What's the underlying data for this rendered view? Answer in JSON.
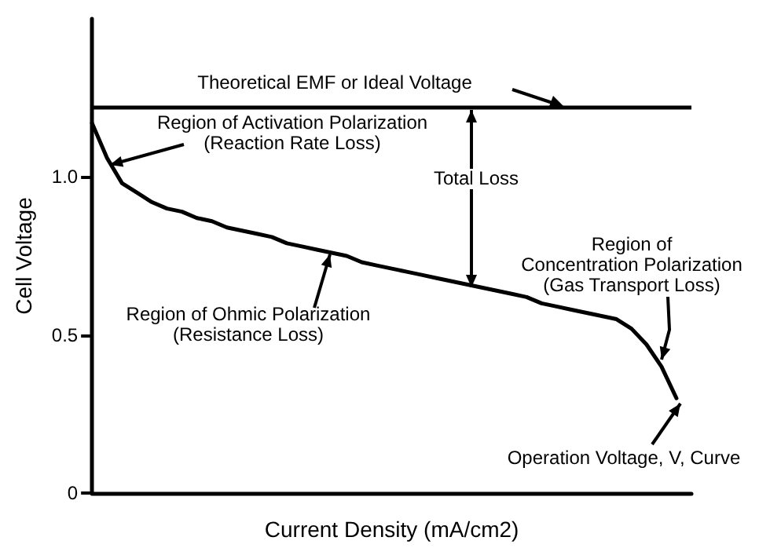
{
  "chart_data": {
    "type": "line",
    "xlabel": "Current Density (mA/cm2)",
    "ylabel": "Cell Voltage",
    "categories": [
      null,
      null,
      null,
      null,
      null,
      null,
      null,
      null,
      null,
      null,
      null,
      null,
      null,
      null,
      null,
      null,
      null,
      null,
      null,
      null,
      null,
      null,
      null,
      null,
      null,
      null,
      null,
      null,
      null,
      null,
      null,
      null,
      null,
      null,
      null,
      null,
      null,
      null,
      null,
      null,
      null
    ],
    "series": [
      {
        "color": "#000000",
        "values": [
          1.17,
          1.06,
          0.98,
          0.95,
          0.92,
          0.9,
          0.89,
          0.87,
          0.86,
          0.84,
          0.83,
          0.82,
          0.81,
          0.79,
          0.78,
          0.77,
          0.76,
          0.75,
          0.73,
          0.72,
          0.71,
          0.7,
          0.69,
          0.68,
          0.67,
          0.66,
          0.65,
          0.64,
          0.63,
          0.62,
          0.6,
          0.59,
          0.58,
          0.57,
          0.56,
          0.55,
          0.52,
          0.47,
          0.4,
          0.3,
          null
        ]
      }
    ],
    "ylim": [
      0,
      1.5
    ],
    "yticks": [
      0,
      0.5,
      {
        "value": 1,
        "label": "1.0"
      }
    ],
    "ref_lines": [
      {
        "axis": "y",
        "value": 1.22,
        "label": "Theoretical EMF or Ideal Voltage",
        "color": "#000000"
      }
    ],
    "annotations": [
      "Region of Activation Polarization\n(Reaction Rate Loss)",
      "Total Loss",
      "Region of Ohmic Polarization\n(Resistance Loss)",
      "Region of\nConcentration Polarization\n(Gas Transport Loss)",
      "Operation Voltage, V, Curve"
    ],
    "tick_labels": "y",
    "grid": false,
    "marker": "none",
    "line_style": "solid"
  }
}
